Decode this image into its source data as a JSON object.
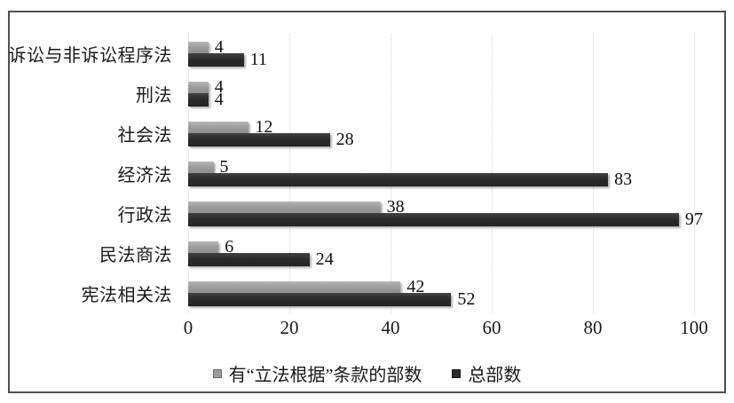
{
  "chart_data": {
    "type": "bar",
    "orientation": "horizontal",
    "title": "",
    "xlabel": "",
    "ylabel": "",
    "categories": [
      "诉讼与非诉讼程序法",
      "刑法",
      "社会法",
      "经济法",
      "行政法",
      "民法商法",
      "宪法相关法"
    ],
    "series": [
      {
        "name": "有“立法根据”条款的部数",
        "color": "#9a9a9a",
        "values": [
          4,
          4,
          12,
          5,
          38,
          6,
          42
        ]
      },
      {
        "name": "总部数",
        "color": "#2b2b2b",
        "values": [
          11,
          4,
          28,
          83,
          97,
          24,
          52
        ]
      }
    ],
    "xlim": [
      0,
      100
    ],
    "x_ticks": [
      0,
      20,
      40,
      60,
      80,
      100
    ],
    "grid": true,
    "gridline_color": "#d9d9d9",
    "legend_position": "bottom",
    "value_labels": true,
    "frame_border_color": "#4f4f4f",
    "background_color": "#ffffff"
  }
}
